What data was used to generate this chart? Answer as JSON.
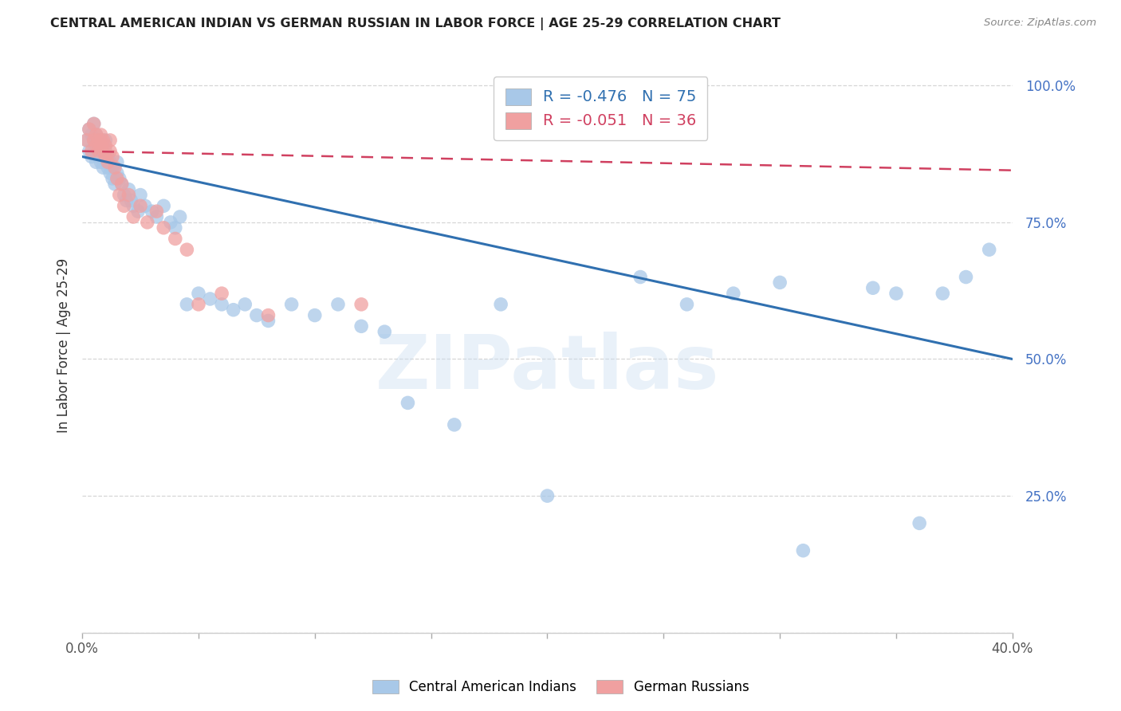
{
  "title": "CENTRAL AMERICAN INDIAN VS GERMAN RUSSIAN IN LABOR FORCE | AGE 25-29 CORRELATION CHART",
  "source": "Source: ZipAtlas.com",
  "ylabel": "In Labor Force | Age 25-29",
  "xlim": [
    0.0,
    0.4
  ],
  "ylim": [
    0.0,
    1.05
  ],
  "x_ticks": [
    0.0,
    0.05,
    0.1,
    0.15,
    0.2,
    0.25,
    0.3,
    0.35,
    0.4
  ],
  "x_tick_labels": [
    "0.0%",
    "",
    "",
    "",
    "",
    "",
    "",
    "",
    "40.0%"
  ],
  "y_tick_labels": [
    "",
    "25.0%",
    "50.0%",
    "75.0%",
    "100.0%"
  ],
  "y_ticks": [
    0.0,
    0.25,
    0.5,
    0.75,
    1.0
  ],
  "watermark": "ZIPatlas",
  "blue_color": "#A8C8E8",
  "blue_line_color": "#3070B0",
  "pink_color": "#F0A0A0",
  "pink_line_color": "#D04060",
  "legend_R_blue": "-0.476",
  "legend_N_blue": "75",
  "legend_R_pink": "-0.051",
  "legend_N_pink": "36",
  "blue_scatter_x": [
    0.002,
    0.003,
    0.003,
    0.004,
    0.004,
    0.005,
    0.005,
    0.005,
    0.006,
    0.006,
    0.006,
    0.007,
    0.007,
    0.007,
    0.008,
    0.008,
    0.008,
    0.009,
    0.009,
    0.01,
    0.01,
    0.01,
    0.011,
    0.011,
    0.012,
    0.012,
    0.013,
    0.013,
    0.014,
    0.015,
    0.015,
    0.016,
    0.017,
    0.018,
    0.019,
    0.02,
    0.021,
    0.022,
    0.024,
    0.025,
    0.027,
    0.03,
    0.032,
    0.035,
    0.038,
    0.04,
    0.042,
    0.045,
    0.05,
    0.055,
    0.06,
    0.065,
    0.07,
    0.075,
    0.08,
    0.09,
    0.1,
    0.11,
    0.12,
    0.13,
    0.14,
    0.16,
    0.18,
    0.2,
    0.24,
    0.26,
    0.28,
    0.3,
    0.31,
    0.34,
    0.35,
    0.36,
    0.37,
    0.38,
    0.39
  ],
  "blue_scatter_y": [
    0.9,
    0.88,
    0.92,
    0.87,
    0.91,
    0.88,
    0.9,
    0.93,
    0.86,
    0.89,
    0.91,
    0.88,
    0.9,
    0.87,
    0.86,
    0.88,
    0.9,
    0.85,
    0.87,
    0.86,
    0.88,
    0.9,
    0.85,
    0.87,
    0.84,
    0.86,
    0.83,
    0.85,
    0.82,
    0.84,
    0.86,
    0.83,
    0.82,
    0.8,
    0.79,
    0.81,
    0.79,
    0.78,
    0.77,
    0.8,
    0.78,
    0.77,
    0.76,
    0.78,
    0.75,
    0.74,
    0.76,
    0.6,
    0.62,
    0.61,
    0.6,
    0.59,
    0.6,
    0.58,
    0.57,
    0.6,
    0.58,
    0.6,
    0.56,
    0.55,
    0.42,
    0.38,
    0.6,
    0.25,
    0.65,
    0.6,
    0.62,
    0.64,
    0.15,
    0.63,
    0.62,
    0.2,
    0.62,
    0.65,
    0.7
  ],
  "pink_scatter_x": [
    0.002,
    0.003,
    0.004,
    0.005,
    0.005,
    0.006,
    0.006,
    0.007,
    0.007,
    0.008,
    0.008,
    0.009,
    0.009,
    0.01,
    0.01,
    0.011,
    0.012,
    0.012,
    0.013,
    0.014,
    0.015,
    0.016,
    0.017,
    0.018,
    0.02,
    0.022,
    0.025,
    0.028,
    0.032,
    0.035,
    0.04,
    0.045,
    0.05,
    0.06,
    0.08,
    0.12
  ],
  "pink_scatter_y": [
    0.9,
    0.92,
    0.88,
    0.9,
    0.93,
    0.89,
    0.91,
    0.88,
    0.9,
    0.89,
    0.91,
    0.88,
    0.9,
    0.87,
    0.89,
    0.86,
    0.88,
    0.9,
    0.87,
    0.85,
    0.83,
    0.8,
    0.82,
    0.78,
    0.8,
    0.76,
    0.78,
    0.75,
    0.77,
    0.74,
    0.72,
    0.7,
    0.6,
    0.62,
    0.58,
    0.6
  ],
  "blue_trendline_x": [
    0.0,
    0.4
  ],
  "blue_trendline_y": [
    0.87,
    0.5
  ],
  "pink_trendline_x": [
    0.0,
    0.4
  ],
  "pink_trendline_y": [
    0.88,
    0.845
  ]
}
